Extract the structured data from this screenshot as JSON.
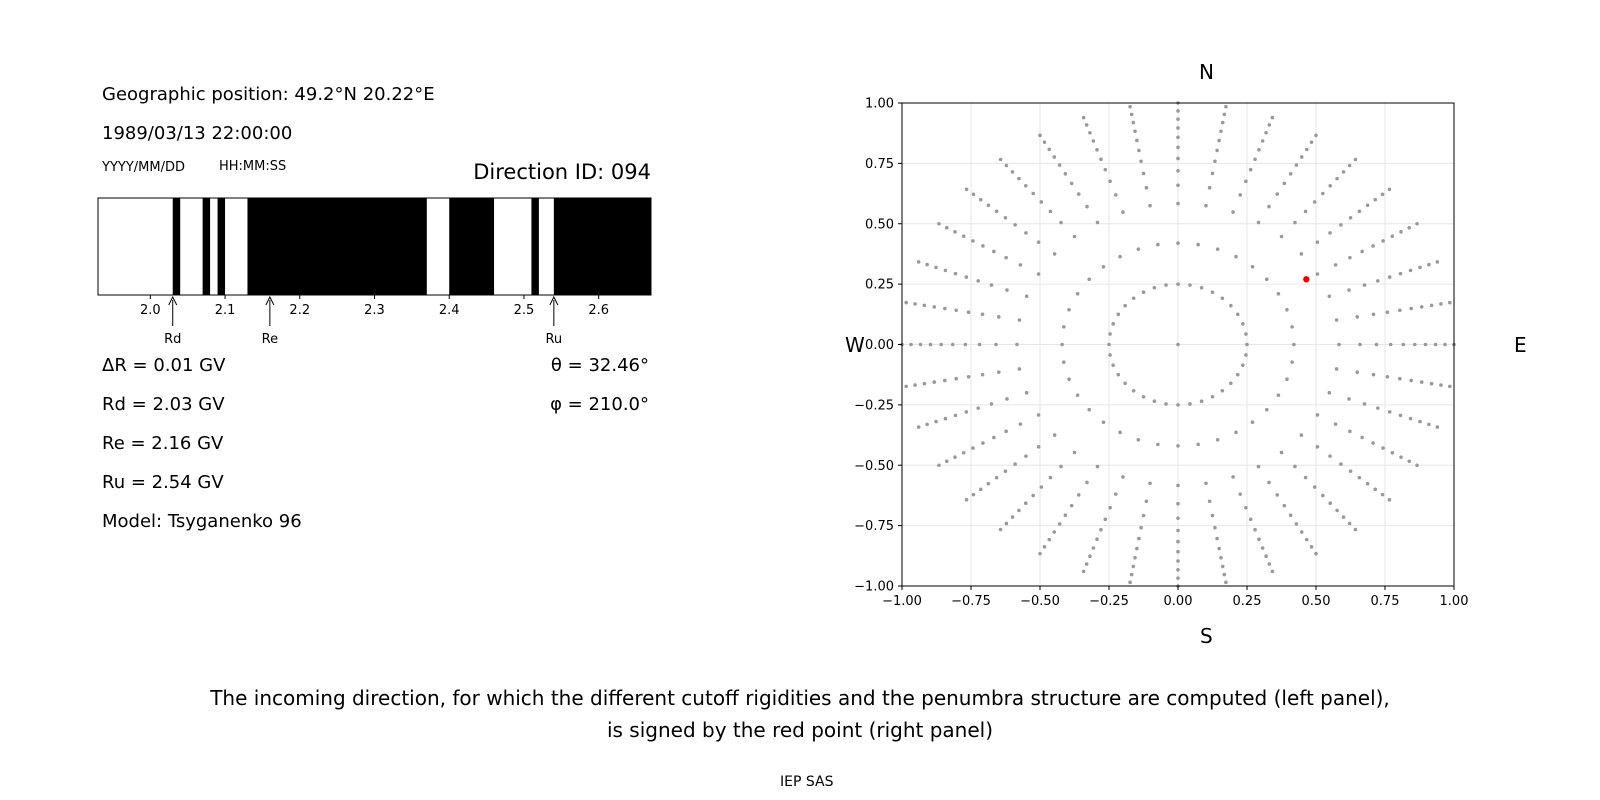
{
  "info": {
    "position": "Geographic position: 49.2°N 20.22°E",
    "datetime": "1989/03/13 22:00:00",
    "date_format": "YYYY/MM/DD",
    "time_format": "HH:MM:SS",
    "direction_id": "Direction ID: 094"
  },
  "results": {
    "delta_r": "ΔR = 0.01 GV",
    "rd": "Rd = 2.03 GV",
    "re": "Re = 2.16 GV",
    "ru": "Ru = 2.54 GV",
    "model": "Model: Tsyganenko 96",
    "theta": "θ = 32.46°",
    "phi": "φ = 210.0°"
  },
  "compass": {
    "n": "N",
    "s": "S",
    "e": "E",
    "w": "W"
  },
  "caption": {
    "line1": "The incoming direction, for which the different cutoff rigidities and the penumbra structure are computed (left panel),",
    "line2": "is signed by the red point (right panel)",
    "credit": "IEP SAS"
  },
  "chart_data": [
    {
      "type": "bar",
      "name": "penumbra",
      "xlim": [
        1.93,
        2.67
      ],
      "ticks": [
        2.0,
        2.1,
        2.2,
        2.3,
        2.4,
        2.5,
        2.6
      ],
      "tick_labels": [
        "2.0",
        "2.1",
        "2.2",
        "2.3",
        "2.4",
        "2.5",
        "2.6"
      ],
      "forbidden_intervals": [
        [
          2.03,
          2.04
        ],
        [
          2.07,
          2.08
        ],
        [
          2.09,
          2.1
        ],
        [
          2.13,
          2.37
        ],
        [
          2.4,
          2.46
        ],
        [
          2.51,
          2.52
        ],
        [
          2.54,
          2.67
        ]
      ],
      "markers": [
        {
          "label": "Rd",
          "value": 2.03
        },
        {
          "label": "Re",
          "value": 2.16
        },
        {
          "label": "Ru",
          "value": 2.54
        }
      ]
    },
    {
      "type": "scatter",
      "name": "directions",
      "xlim": [
        -1,
        1
      ],
      "ylim": [
        -1,
        1
      ],
      "ticks": [
        -1.0,
        -0.75,
        -0.5,
        -0.25,
        0.0,
        0.25,
        0.5,
        0.75,
        1.0
      ],
      "tick_labels": [
        "−1.00",
        "−0.75",
        "−0.50",
        "−0.25",
        "0.00",
        "0.25",
        "0.50",
        "0.75",
        "1.00"
      ],
      "grid": true,
      "point_color": "#999999",
      "highlight_color": "#ee0000",
      "pattern": {
        "center": [
          0,
          0
        ],
        "ring_radius": 0.25,
        "ring_points": 36,
        "ray_count": 36,
        "ray_start": 0.42,
        "ray_end": 1.0,
        "ray_points": 11
      },
      "highlight": {
        "x": 0.465,
        "y": 0.27
      }
    }
  ]
}
